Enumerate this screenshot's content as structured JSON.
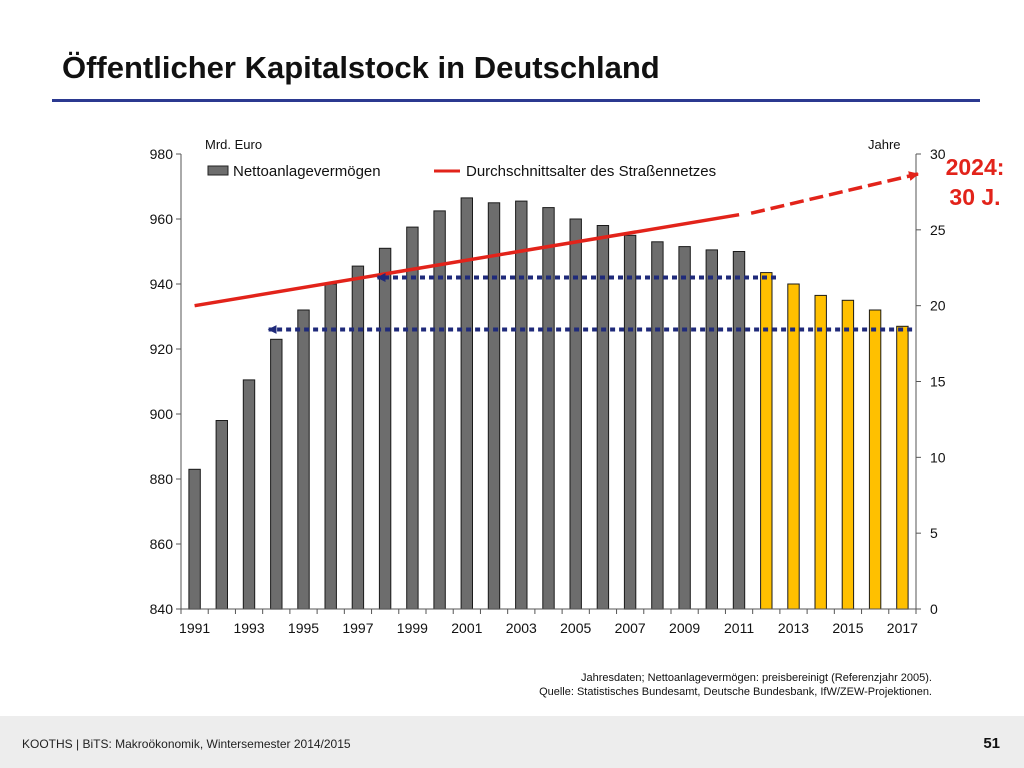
{
  "slide": {
    "title": "Öffentlicher Kapitalstock in Deutschland",
    "note_line1": "Jahresdaten; Nettoanlagevermögen: preisbereinigt (Referenzjahr 2005).",
    "note_line2": "Quelle: Statistisches Bundesamt, Deutsche Bundesbank, IfW/ZEW-Projektionen.",
    "footer": "KOOTHS | BiTS: Makroökonomik, Wintersemester 2014/2015",
    "page_number": "51",
    "callout_line1": "2024:",
    "callout_line2": "30 J."
  },
  "colors": {
    "bar_actual": "#6d6d6d",
    "bar_projection": "#ffc000",
    "line": "#e2231a",
    "arrow": "#1f2a7a",
    "title_rule": "#2b3990"
  },
  "chart_data": {
    "type": "bar",
    "y_left_label": "Mrd. Euro",
    "y_right_label": "Jahre",
    "ylim_left": [
      840,
      980
    ],
    "ylim_right": [
      0,
      30
    ],
    "y_left_ticks": [
      840,
      860,
      880,
      900,
      920,
      940,
      960,
      980
    ],
    "y_right_ticks": [
      0,
      5,
      10,
      15,
      20,
      25,
      30
    ],
    "x_tick_labels": [
      "1991",
      "1993",
      "1995",
      "1997",
      "1999",
      "2001",
      "2003",
      "2005",
      "2007",
      "2009",
      "2011",
      "2013",
      "2015",
      "2017"
    ],
    "legend_position": "top",
    "categories": [
      1991,
      1992,
      1993,
      1994,
      1995,
      1996,
      1997,
      1998,
      1999,
      2000,
      2001,
      2002,
      2003,
      2004,
      2005,
      2006,
      2007,
      2008,
      2009,
      2010,
      2011,
      2012,
      2013,
      2014,
      2015,
      2016,
      2017
    ],
    "series": [
      {
        "name": "Nettoanlagevermögen",
        "axis": "left",
        "values": [
          883,
          898,
          910.5,
          923,
          932,
          940,
          945.5,
          951,
          957.5,
          962.5,
          966.5,
          965,
          965.5,
          963.5,
          960,
          958,
          955,
          953,
          951.5,
          950.5,
          950,
          943.5,
          940,
          936.5,
          935,
          932,
          927
        ],
        "projection_from": 2012
      },
      {
        "name": "Durchschnittsalter des Straßennetzes",
        "axis": "right",
        "type": "line",
        "x": [
          1991,
          2011
        ],
        "values": [
          20,
          26
        ],
        "projection_x": [
          2011,
          2024
        ],
        "projection_values": [
          26,
          30
        ]
      }
    ],
    "annotations": [
      {
        "type": "dotted-arrow",
        "from_x": 2012,
        "to_x": 1998,
        "y": 942
      },
      {
        "type": "dotted-arrow",
        "from_x": 2017,
        "to_x": 1994,
        "y": 926
      }
    ]
  }
}
